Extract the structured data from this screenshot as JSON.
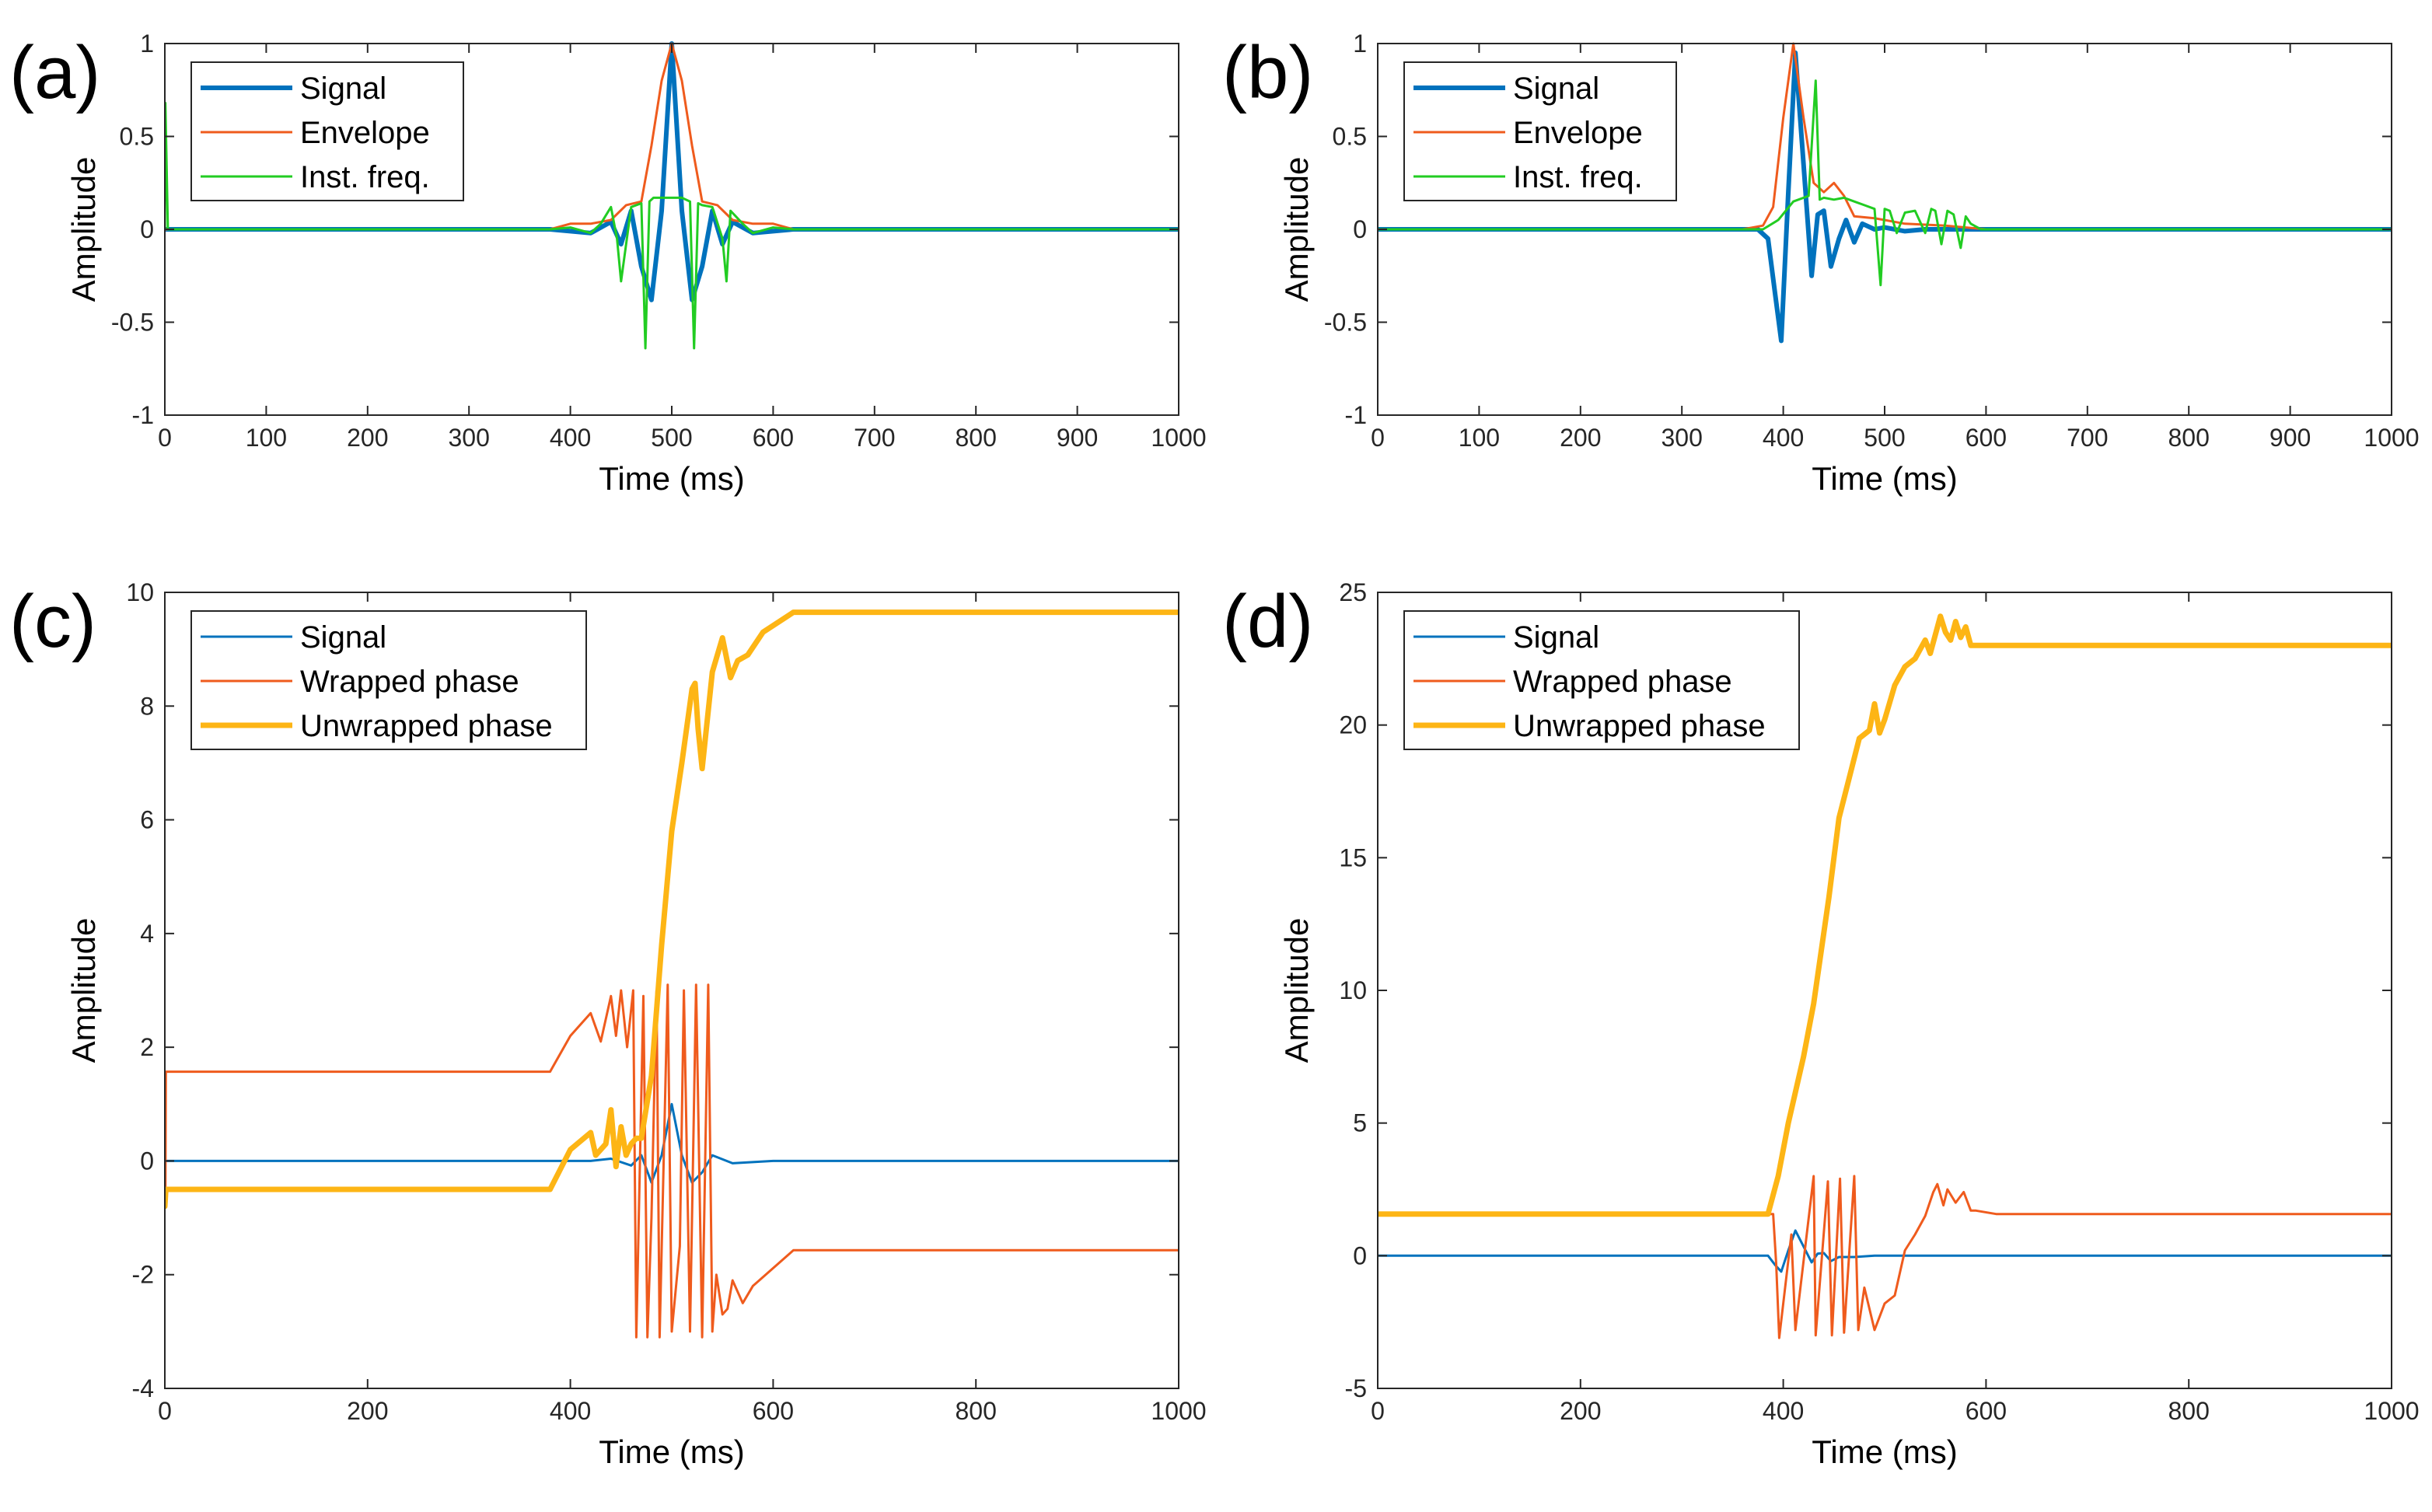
{
  "colors": {
    "blue": "#0072BD",
    "orange": "#EF5B1D",
    "green": "#22CC22",
    "yellow": "#FDB515"
  },
  "chart_data": [
    {
      "panel": "(a)",
      "type": "line",
      "xlabel": "Time (ms)",
      "ylabel": "Amplitude",
      "xlim": [
        0,
        1000
      ],
      "ylim": [
        -1,
        1
      ],
      "xticks": [
        0,
        100,
        200,
        300,
        400,
        500,
        600,
        700,
        800,
        900,
        1000
      ],
      "yticks": [
        -1,
        -0.5,
        0,
        0.5,
        1
      ],
      "legend": "top-left",
      "series": [
        {
          "name": "Signal",
          "color": "#0072BD",
          "width": 6,
          "x": [
            0,
            380,
            400,
            420,
            440,
            450,
            460,
            470,
            480,
            490,
            500,
            510,
            520,
            530,
            540,
            550,
            560,
            580,
            600,
            620,
            1000
          ],
          "y": [
            0,
            0,
            -0.01,
            -0.02,
            0.04,
            -0.08,
            0.1,
            -0.2,
            -0.38,
            0.1,
            1,
            0.1,
            -0.38,
            -0.2,
            0.1,
            -0.08,
            0.04,
            -0.02,
            -0.01,
            0,
            0
          ]
        },
        {
          "name": "Envelope",
          "color": "#EF5B1D",
          "width": 3,
          "x": [
            0,
            380,
            400,
            420,
            440,
            455,
            470,
            480,
            490,
            500,
            510,
            520,
            530,
            545,
            560,
            580,
            600,
            620,
            1000
          ],
          "y": [
            0,
            0,
            0.03,
            0.03,
            0.05,
            0.13,
            0.15,
            0.45,
            0.8,
            1,
            0.8,
            0.45,
            0.15,
            0.13,
            0.05,
            0.03,
            0.03,
            0,
            0
          ]
        },
        {
          "name": "Inst. freq.",
          "color": "#22CC22",
          "width": 3,
          "x": [
            0,
            0.5,
            3,
            380,
            400,
            420,
            430,
            440,
            446,
            450,
            460,
            470,
            474,
            478,
            482,
            490,
            500,
            510,
            518,
            522,
            526,
            530,
            540,
            550,
            554,
            558,
            570,
            580,
            600,
            620,
            1000
          ],
          "y": [
            0,
            0.68,
            0,
            0,
            0.01,
            -0.02,
            0.03,
            0.12,
            -0.05,
            -0.28,
            0.12,
            0.14,
            -0.64,
            0.15,
            0.17,
            0.17,
            0.17,
            0.17,
            0.15,
            -0.64,
            0.14,
            0.13,
            0.12,
            -0.05,
            -0.28,
            0.1,
            0.03,
            -0.02,
            0.01,
            0,
            0
          ]
        }
      ]
    },
    {
      "panel": "(b)",
      "type": "line",
      "xlabel": "Time (ms)",
      "ylabel": "Amplitude",
      "xlim": [
        0,
        1000
      ],
      "ylim": [
        -1,
        1
      ],
      "xticks": [
        0,
        100,
        200,
        300,
        400,
        500,
        600,
        700,
        800,
        900,
        1000
      ],
      "yticks": [
        -1,
        -0.5,
        0,
        0.5,
        1
      ],
      "legend": "top-left",
      "series": [
        {
          "name": "Signal",
          "color": "#0072BD",
          "width": 6,
          "x": [
            0,
            375,
            385,
            392,
            398,
            405,
            412,
            420,
            428,
            434,
            440,
            447,
            455,
            462,
            470,
            478,
            490,
            500,
            520,
            540,
            1000
          ],
          "y": [
            0,
            0,
            -0.05,
            -0.35,
            -0.6,
            0.2,
            0.95,
            0.35,
            -0.25,
            0.08,
            0.1,
            -0.2,
            -0.05,
            0.05,
            -0.07,
            0.03,
            0,
            0.01,
            -0.01,
            0,
            0
          ]
        },
        {
          "name": "Envelope",
          "color": "#EF5B1D",
          "width": 3,
          "x": [
            0,
            360,
            380,
            390,
            400,
            410,
            420,
            430,
            440,
            450,
            460,
            470,
            490,
            520,
            560,
            600,
            1000
          ],
          "y": [
            0,
            0,
            0.02,
            0.12,
            0.6,
            1,
            0.6,
            0.25,
            0.2,
            0.25,
            0.18,
            0.07,
            0.06,
            0.03,
            0.02,
            0,
            0
          ]
        },
        {
          "name": "Inst. freq.",
          "color": "#22CC22",
          "width": 3,
          "x": [
            0,
            380,
            395,
            410,
            425,
            432,
            436,
            440,
            450,
            460,
            470,
            480,
            490,
            496,
            500,
            505,
            512,
            520,
            530,
            540,
            546,
            550,
            556,
            562,
            568,
            575,
            580,
            585,
            595,
            1000
          ],
          "y": [
            0,
            0,
            0.05,
            0.15,
            0.18,
            0.8,
            0.16,
            0.17,
            0.16,
            0.17,
            0.15,
            0.13,
            0.11,
            -0.3,
            0.11,
            0.1,
            -0.02,
            0.09,
            0.1,
            -0.02,
            0.11,
            0.1,
            -0.08,
            0.1,
            0.08,
            -0.1,
            0.07,
            0.03,
            0,
            0
          ]
        }
      ]
    },
    {
      "panel": "(c)",
      "type": "line",
      "xlabel": "Time (ms)",
      "ylabel": "Amplitude",
      "xlim": [
        0,
        1000
      ],
      "ylim": [
        -4,
        10
      ],
      "xticks": [
        0,
        200,
        400,
        600,
        800,
        1000
      ],
      "yticks": [
        -4,
        -2,
        0,
        2,
        4,
        6,
        8,
        10
      ],
      "legend": "top-left",
      "series": [
        {
          "name": "Signal",
          "color": "#0072BD",
          "width": 3,
          "x": [
            0,
            380,
            420,
            440,
            460,
            470,
            480,
            490,
            500,
            510,
            520,
            530,
            540,
            560,
            600,
            1000
          ],
          "y": [
            0,
            0,
            0,
            0.04,
            -0.08,
            0.1,
            -0.38,
            0.1,
            1,
            0.1,
            -0.38,
            -0.2,
            0.1,
            -0.04,
            0,
            0
          ]
        },
        {
          "name": "Wrapped phase",
          "color": "#EF5B1D",
          "width": 3,
          "x": [
            0,
            0.5,
            1,
            380,
            400,
            420,
            430,
            440,
            445,
            450,
            456,
            462,
            465,
            472,
            476,
            480,
            485,
            488,
            496,
            500,
            508,
            512,
            518,
            524,
            530,
            536,
            540,
            544,
            550,
            555,
            560,
            570,
            580,
            620,
            1000
          ],
          "y": [
            -0.5,
            -0.8,
            1.57,
            1.57,
            2.2,
            2.6,
            2.1,
            2.9,
            2.2,
            3.0,
            2.0,
            3.0,
            -3.1,
            2.9,
            -3.1,
            -1.0,
            3.0,
            -3.1,
            3.1,
            -3.0,
            -1.5,
            3.0,
            -3.0,
            3.1,
            -3.1,
            3.1,
            -3.0,
            -2.0,
            -2.7,
            -2.6,
            -2.1,
            -2.5,
            -2.2,
            -1.57,
            -1.57
          ]
        },
        {
          "name": "Unwrapped phase",
          "color": "#FDB515",
          "width": 7,
          "x": [
            0,
            1,
            380,
            400,
            420,
            425,
            435,
            440,
            445,
            450,
            455,
            460,
            465,
            470,
            480,
            490,
            500,
            510,
            520,
            523,
            526,
            530,
            540,
            550,
            558,
            565,
            575,
            590,
            620,
            1000
          ],
          "y": [
            -0.8,
            -0.5,
            -0.5,
            0.2,
            0.5,
            0.1,
            0.3,
            0.9,
            -0.1,
            0.6,
            0.1,
            0.3,
            0.4,
            0.4,
            1.5,
            3.8,
            5.8,
            7.0,
            8.3,
            8.4,
            7.6,
            6.9,
            8.6,
            9.2,
            8.5,
            8.8,
            8.9,
            9.3,
            9.65,
            9.65
          ]
        }
      ]
    },
    {
      "panel": "(d)",
      "type": "line",
      "xlabel": "Time (ms)",
      "ylabel": "Amplitude",
      "xlim": [
        0,
        1000
      ],
      "ylim": [
        -5,
        25
      ],
      "xticks": [
        0,
        200,
        400,
        600,
        800,
        1000
      ],
      "yticks": [
        -5,
        0,
        5,
        10,
        15,
        20,
        25
      ],
      "legend": "top-left",
      "series": [
        {
          "name": "Signal",
          "color": "#0072BD",
          "width": 3,
          "x": [
            0,
            385,
            392,
            398,
            405,
            412,
            420,
            428,
            434,
            440,
            447,
            455,
            470,
            490,
            1000
          ],
          "y": [
            0,
            0,
            -0.35,
            -0.6,
            0.2,
            0.95,
            0.35,
            -0.25,
            0.08,
            0.1,
            -0.2,
            -0.05,
            -0.05,
            0,
            0
          ]
        },
        {
          "name": "Wrapped phase",
          "color": "#EF5B1D",
          "width": 3,
          "x": [
            0,
            390,
            393,
            396,
            408,
            412,
            430,
            432,
            444,
            448,
            456,
            460,
            470,
            474,
            480,
            490,
            500,
            510,
            520,
            530,
            540,
            548,
            552,
            558,
            562,
            570,
            578,
            585,
            590,
            610,
            1000
          ],
          "y": [
            1.57,
            1.57,
            -0.3,
            -3.1,
            0.8,
            -2.8,
            3.0,
            -3.0,
            2.8,
            -3.0,
            2.9,
            -2.9,
            3.0,
            -2.8,
            -1.2,
            -2.8,
            -1.8,
            -1.5,
            0.2,
            0.8,
            1.5,
            2.4,
            2.7,
            1.9,
            2.5,
            2.0,
            2.4,
            1.7,
            1.7,
            1.57,
            1.57
          ]
        },
        {
          "name": "Unwrapped phase",
          "color": "#FDB515",
          "width": 7,
          "x": [
            0,
            385,
            395,
            405,
            420,
            430,
            445,
            455,
            465,
            475,
            485,
            490,
            495,
            500,
            510,
            520,
            530,
            540,
            545,
            550,
            555,
            560,
            565,
            570,
            575,
            580,
            585,
            595,
            1000
          ],
          "y": [
            1.57,
            1.57,
            3.0,
            5.0,
            7.5,
            9.5,
            13.5,
            16.5,
            18.0,
            19.5,
            19.8,
            20.8,
            19.7,
            20.2,
            21.5,
            22.2,
            22.5,
            23.2,
            22.7,
            23.4,
            24.1,
            23.5,
            23.2,
            23.9,
            23.3,
            23.7,
            23.0,
            23.0,
            23.0
          ]
        }
      ]
    }
  ]
}
